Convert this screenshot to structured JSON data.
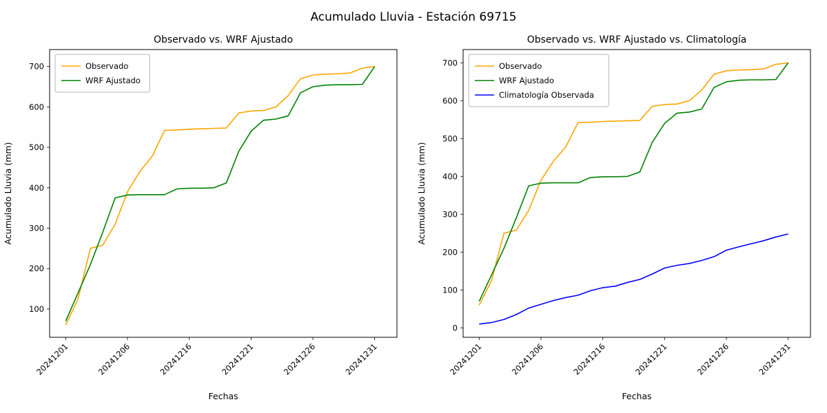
{
  "figure_title": "Acumulado Lluvia - Estación 69715",
  "chart_data": [
    {
      "type": "line",
      "title": "Observado vs. WRF Ajustado",
      "xlabel": "Fechas",
      "ylabel": "Acumulado Lluvia (mm)",
      "xtick_labels": [
        "20241201",
        "20241206",
        "20241216",
        "20241221",
        "20241226",
        "20241231"
      ],
      "xtick_positions": [
        0,
        5,
        10,
        15,
        20,
        25
      ],
      "xlim": [
        -1.3,
        26.8
      ],
      "ylim": [
        30,
        742
      ],
      "yticks": [
        100,
        200,
        300,
        400,
        500,
        600,
        700
      ],
      "grid": false,
      "legend_position": "upper-left",
      "series": [
        {
          "name": "Observado",
          "color": "#ffa500",
          "values": [
            60,
            125,
            250,
            258,
            310,
            390,
            440,
            478,
            542,
            543,
            545,
            546,
            547,
            548,
            585,
            590,
            591,
            600,
            628,
            670,
            679,
            681,
            682,
            684,
            696,
            700
          ]
        },
        {
          "name": "WRF Ajustado",
          "color": "#008000",
          "values": [
            70,
            140,
            210,
            290,
            375,
            382,
            383,
            383,
            383,
            397,
            399,
            399,
            400,
            412,
            490,
            540,
            567,
            570,
            578,
            635,
            650,
            654,
            655,
            655,
            656,
            700
          ]
        }
      ]
    },
    {
      "type": "line",
      "title": "Observado vs. WRF Ajustado vs. Climatología",
      "xlabel": "Fechas",
      "ylabel": "Acumulado Lluvia (mm)",
      "xtick_labels": [
        "20241201",
        "20241206",
        "20241216",
        "20241221",
        "20241226",
        "20241231"
      ],
      "xtick_positions": [
        0,
        5,
        10,
        15,
        20,
        25
      ],
      "xlim": [
        -1.3,
        26.8
      ],
      "ylim": [
        -25,
        735
      ],
      "yticks": [
        0,
        100,
        200,
        300,
        400,
        500,
        600,
        700
      ],
      "grid": false,
      "legend_position": "upper-left",
      "series": [
        {
          "name": "Observado",
          "color": "#ffa500",
          "values": [
            60,
            125,
            250,
            258,
            310,
            390,
            440,
            478,
            542,
            543,
            545,
            546,
            547,
            548,
            585,
            590,
            591,
            600,
            628,
            670,
            679,
            681,
            682,
            684,
            696,
            700
          ]
        },
        {
          "name": "WRF Ajustado",
          "color": "#008000",
          "values": [
            70,
            140,
            210,
            290,
            375,
            382,
            383,
            383,
            383,
            397,
            399,
            399,
            400,
            412,
            490,
            540,
            567,
            570,
            578,
            635,
            650,
            654,
            655,
            655,
            656,
            700
          ]
        },
        {
          "name": "Climatología Observada",
          "color": "#0000ff",
          "values": [
            10,
            14,
            22,
            35,
            52,
            62,
            72,
            80,
            86,
            98,
            106,
            110,
            120,
            128,
            142,
            158,
            165,
            170,
            178,
            188,
            205,
            214,
            222,
            230,
            240,
            248
          ]
        }
      ]
    }
  ]
}
